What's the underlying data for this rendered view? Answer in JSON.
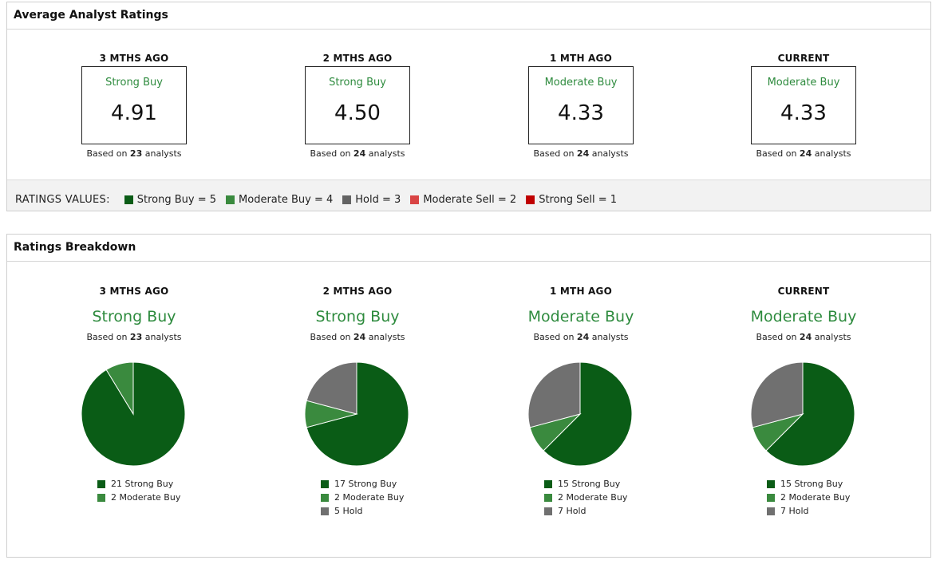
{
  "average": {
    "title": "Average Analyst Ratings",
    "periods": [
      {
        "label": "3 MTHS AGO",
        "rating": "Strong Buy",
        "score": "4.91",
        "based_prefix": "Based on",
        "analysts": "23",
        "based_suffix": "analysts"
      },
      {
        "label": "2 MTHS AGO",
        "rating": "Strong Buy",
        "score": "4.50",
        "based_prefix": "Based on",
        "analysts": "24",
        "based_suffix": "analysts"
      },
      {
        "label": "1 MTH AGO",
        "rating": "Moderate Buy",
        "score": "4.33",
        "based_prefix": "Based on",
        "analysts": "24",
        "based_suffix": "analysts"
      },
      {
        "label": "CURRENT",
        "rating": "Moderate Buy",
        "score": "4.33",
        "based_prefix": "Based on",
        "analysts": "24",
        "based_suffix": "analysts"
      }
    ],
    "legend_title": "RATINGS VALUES:",
    "legend": [
      {
        "label": "Strong Buy = 5",
        "color": "#0a5c16"
      },
      {
        "label": "Moderate Buy = 4",
        "color": "#3a8a3e"
      },
      {
        "label": "Hold = 3",
        "color": "#636363"
      },
      {
        "label": "Moderate Sell = 2",
        "color": "#d94444"
      },
      {
        "label": "Strong Sell = 1",
        "color": "#c00000"
      }
    ]
  },
  "breakdown": {
    "title": "Ratings Breakdown",
    "periods": [
      {
        "label": "3 MTHS AGO",
        "rating": "Strong Buy",
        "based_prefix": "Based on",
        "analysts": "23",
        "based_suffix": "analysts",
        "legend": [
          "21 Strong Buy",
          "2 Moderate Buy"
        ]
      },
      {
        "label": "2 MTHS AGO",
        "rating": "Strong Buy",
        "based_prefix": "Based on",
        "analysts": "24",
        "based_suffix": "analysts",
        "legend": [
          "17 Strong Buy",
          "2 Moderate Buy",
          "5 Hold"
        ]
      },
      {
        "label": "1 MTH AGO",
        "rating": "Moderate Buy",
        "based_prefix": "Based on",
        "analysts": "24",
        "based_suffix": "analysts",
        "legend": [
          "15 Strong Buy",
          "2 Moderate Buy",
          "7 Hold"
        ]
      },
      {
        "label": "CURRENT",
        "rating": "Moderate Buy",
        "based_prefix": "Based on",
        "analysts": "24",
        "based_suffix": "analysts",
        "legend": [
          "15 Strong Buy",
          "2 Moderate Buy",
          "7 Hold"
        ]
      }
    ]
  },
  "chart_data": [
    {
      "type": "pie",
      "categories": [
        "Strong Buy",
        "Moderate Buy",
        "Hold"
      ],
      "values": [
        21,
        2,
        0
      ],
      "colors": [
        "#0a5c16",
        "#3a8a3e",
        "#707070"
      ]
    },
    {
      "type": "pie",
      "categories": [
        "Strong Buy",
        "Moderate Buy",
        "Hold"
      ],
      "values": [
        17,
        2,
        5
      ],
      "colors": [
        "#0a5c16",
        "#3a8a3e",
        "#707070"
      ]
    },
    {
      "type": "pie",
      "categories": [
        "Strong Buy",
        "Moderate Buy",
        "Hold"
      ],
      "values": [
        15,
        2,
        7
      ],
      "colors": [
        "#0a5c16",
        "#3a8a3e",
        "#707070"
      ]
    },
    {
      "type": "pie",
      "categories": [
        "Strong Buy",
        "Moderate Buy",
        "Hold"
      ],
      "values": [
        15,
        2,
        7
      ],
      "colors": [
        "#0a5c16",
        "#3a8a3e",
        "#707070"
      ]
    }
  ]
}
